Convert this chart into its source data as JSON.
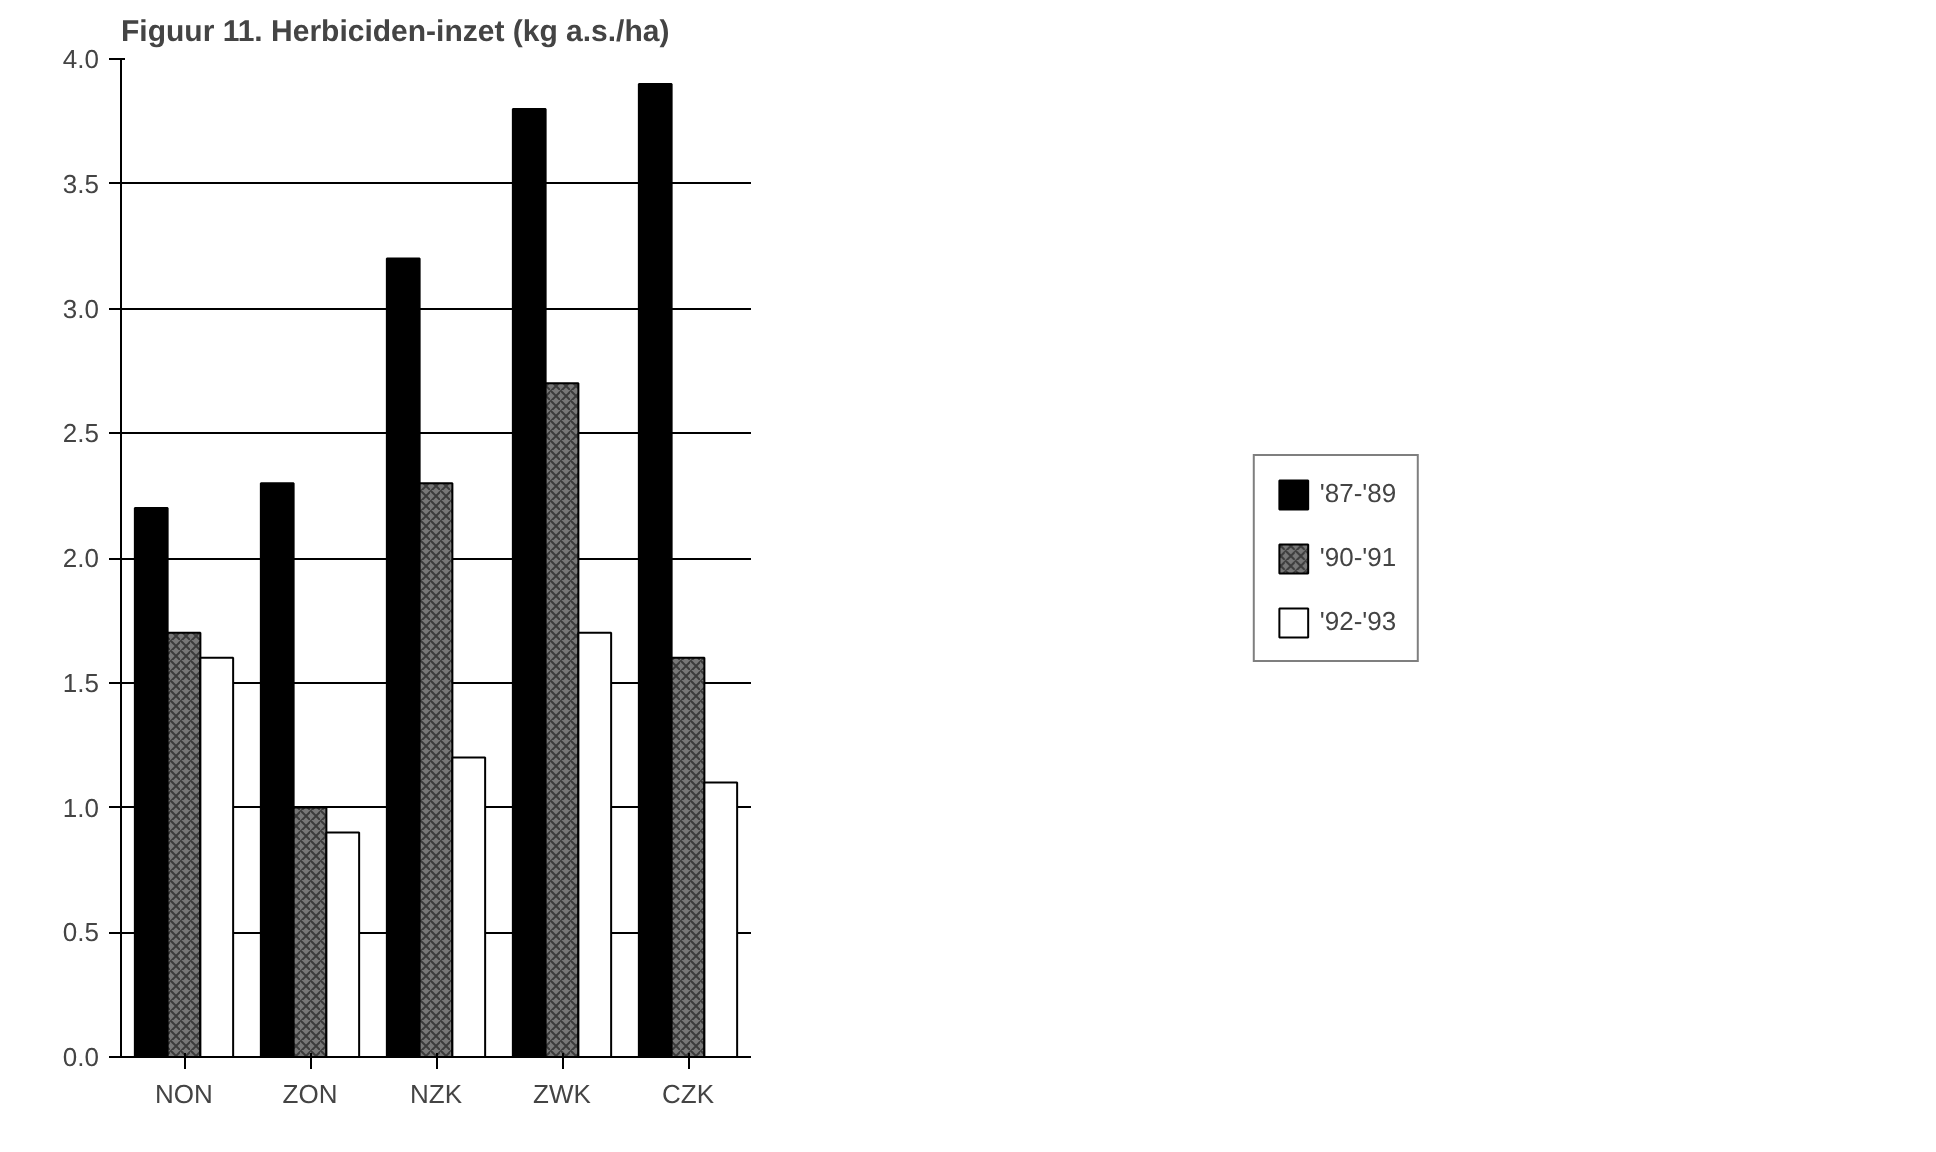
{
  "chart_data": {
    "type": "bar",
    "title": "Figuur 11. Herbiciden-inzet (kg a.s./ha)",
    "categories": [
      "NON",
      "ZON",
      "NZK",
      "ZWK",
      "CZK"
    ],
    "series": [
      {
        "name": "'87-'89",
        "color": "#000000",
        "values": [
          2.2,
          2.3,
          3.2,
          3.8,
          3.9
        ]
      },
      {
        "name": "'90-'91",
        "color": "#777777",
        "values": [
          1.7,
          1.0,
          2.3,
          2.7,
          1.6
        ]
      },
      {
        "name": "'92-'93",
        "color": "#ffffff",
        "values": [
          1.6,
          0.9,
          1.2,
          1.7,
          1.1
        ]
      }
    ],
    "ylim": [
      0,
      4
    ],
    "yticks": [
      {
        "value": 0,
        "label": "0.0"
      },
      {
        "value": 0.5,
        "label": "0.5"
      },
      {
        "value": 1,
        "label": "1.0"
      },
      {
        "value": 1.5,
        "label": "1.5"
      },
      {
        "value": 2,
        "label": "2.0"
      },
      {
        "value": 2.5,
        "label": "2.5"
      },
      {
        "value": 3,
        "label": "3.0"
      },
      {
        "value": 3.5,
        "label": "3.5"
      },
      {
        "value": 4,
        "label": "4.0"
      }
    ],
    "grid": "y",
    "legend": "right"
  }
}
